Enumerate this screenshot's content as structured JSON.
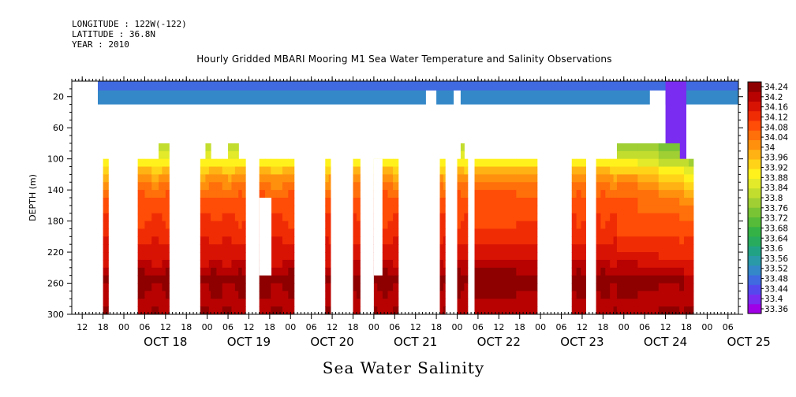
{
  "header": {
    "longitude": "LONGITUDE : 122W(-122)",
    "latitude": "LATITUDE : 36.8N",
    "year": "YEAR : 2010"
  },
  "chart_data": {
    "type": "heatmap",
    "title": "Hourly Gridded MBARI Mooring M1 Sea Water Temperature and Salinity Observations",
    "xlabel": "Sea Water Salinity",
    "ylabel": "DEPTH (m)",
    "x_unit": "hours since 2010-10-17 00:00",
    "xlim": [
      9,
      201
    ],
    "ylim": [
      300,
      0
    ],
    "y_ticks": [
      20,
      60,
      100,
      140,
      180,
      220,
      260,
      300
    ],
    "hour_ticks": [
      "12",
      "18",
      "00",
      "06",
      "12",
      "18",
      "00",
      "06",
      "12",
      "18",
      "00",
      "06",
      "12",
      "18",
      "00",
      "06",
      "12",
      "18",
      "00",
      "06",
      "12",
      "18",
      "00",
      "06",
      "12",
      "18",
      "00",
      "06",
      "12",
      "18",
      "00",
      "06"
    ],
    "date_labels": [
      "OCT 18",
      "OCT 19",
      "OCT 20",
      "OCT 21",
      "OCT 22",
      "OCT 23",
      "OCT 24",
      "OCT 25"
    ],
    "colorbar": {
      "min": 33.36,
      "max": 34.24,
      "step": 0.04,
      "labels": [
        "34.24",
        "34.2",
        "34.16",
        "34.12",
        "34.08",
        "34.04",
        "34",
        "33.96",
        "33.92",
        "33.88",
        "33.84",
        "33.8",
        "33.76",
        "33.72",
        "33.68",
        "33.64",
        "33.6",
        "33.56",
        "33.52",
        "33.48",
        "33.44",
        "33.4",
        "33.36"
      ],
      "colors": [
        "#9f00e6",
        "#7a2cf0",
        "#5549ee",
        "#3f6ae0",
        "#3488c8",
        "#2a9aa8",
        "#22a285",
        "#28ab5d",
        "#35b245",
        "#55bb38",
        "#79c435",
        "#9fcf33",
        "#c3dd2e",
        "#e2ea2a",
        "#fff21c",
        "#ffd418",
        "#ffb213",
        "#ff900e",
        "#ff6f0a",
        "#ff4c07",
        "#f02c05",
        "#d81304",
        "#b80202",
        "#8e0000"
      ]
    },
    "surface_salinity": 33.53,
    "surface_layer_depth": [
      0,
      30
    ],
    "surface_coverage": [
      [
        16.5,
        111
      ],
      [
        114,
        119
      ],
      [
        121,
        175.5
      ],
      [
        180,
        201
      ]
    ],
    "surface_blue_extra": [
      [
        16.5,
        201
      ]
    ],
    "deep_coverage": [
      {
        "x": [
          18,
          19.5
        ],
        "top": 100
      },
      {
        "x": [
          28,
          34
        ],
        "top": 100
      },
      {
        "x": [
          34,
          37
        ],
        "top": 80
      },
      {
        "x": [
          46,
          47.5
        ],
        "top": 100
      },
      {
        "x": [
          47.5,
          49
        ],
        "top": 80
      },
      {
        "x": [
          49,
          54
        ],
        "top": 100
      },
      {
        "x": [
          54,
          57
        ],
        "top": 80
      },
      {
        "x": [
          57,
          59
        ],
        "top": 100
      },
      {
        "x": [
          63,
          68
        ],
        "top": 100,
        "notch": {
          "x": [
            63,
            66.5
          ],
          "y": [
            150,
            250
          ]
        }
      },
      {
        "x": [
          68,
          73
        ],
        "top": 100
      },
      {
        "x": [
          82,
          83.5
        ],
        "top": 100
      },
      {
        "x": [
          90,
          92
        ],
        "top": 100
      },
      {
        "x": [
          96,
          98.5
        ],
        "top": 100,
        "notch": {
          "x": [
            96,
            98.5
          ],
          "y": [
            100,
            250
          ]
        }
      },
      {
        "x": [
          98.5,
          103
        ],
        "top": 100
      },
      {
        "x": [
          115,
          116.5
        ],
        "top": 100
      },
      {
        "x": [
          120,
          121
        ],
        "top": 100
      },
      {
        "x": [
          121,
          122
        ],
        "top": 80
      },
      {
        "x": [
          122,
          123
        ],
        "top": 100
      },
      {
        "x": [
          125,
          143
        ],
        "top": 100
      },
      {
        "x": [
          153,
          157
        ],
        "top": 100
      },
      {
        "x": [
          160,
          164
        ],
        "top": 100
      },
      {
        "x": [
          164,
          166
        ],
        "top": 100
      },
      {
        "x": [
          166,
          184
        ],
        "top": 80
      },
      {
        "x": [
          184,
          188
        ],
        "top": 100
      }
    ],
    "profile": [
      [
        100,
        33.86
      ],
      [
        120,
        33.98
      ],
      [
        140,
        34.04
      ],
      [
        160,
        34.08
      ],
      [
        180,
        34.1
      ],
      [
        200,
        34.12
      ],
      [
        220,
        34.14
      ],
      [
        240,
        34.18
      ],
      [
        255,
        34.22
      ],
      [
        270,
        34.2
      ],
      [
        300,
        34.2
      ]
    ],
    "late_fresh_shift": {
      "x_start": 164,
      "x_end": 201,
      "max_shift": 0.1
    }
  }
}
